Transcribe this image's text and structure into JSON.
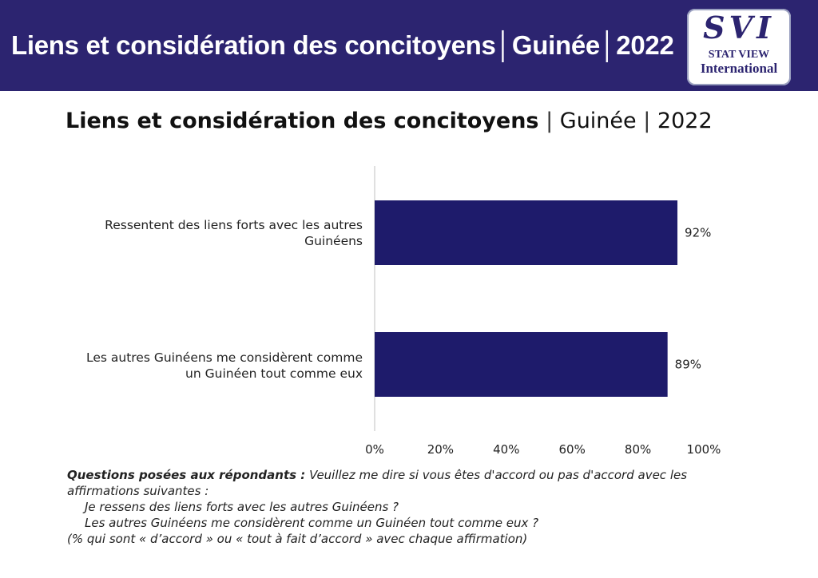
{
  "banner": {
    "title": "Liens et considération des concitoyens│Guinée│2022",
    "logo_mark": "SVI",
    "logo_line1": "STAT VIEW",
    "logo_line2": "International"
  },
  "chart_title": {
    "main": "Liens et considération des concitoyens",
    "separator": " | ",
    "country": "Guinée",
    "year": "2022"
  },
  "colors": {
    "banner": "#2c2470",
    "bar": "#1e1b6b",
    "axis": "#cccccc"
  },
  "chart_data": {
    "type": "bar",
    "orientation": "horizontal",
    "categories": [
      [
        "Ressentent des liens forts avec les autres",
        "Guinéens"
      ],
      [
        "Les autres Guinéens me considèrent comme",
        "un Guinéen tout comme eux"
      ]
    ],
    "values": [
      92,
      89
    ],
    "value_labels": [
      "92%",
      "89%"
    ],
    "xlim": [
      0,
      100
    ],
    "ticks": [
      "0%",
      "20%",
      "40%",
      "60%",
      "80%",
      "100%"
    ],
    "grid": false,
    "legend": "none"
  },
  "footer": {
    "lead": "Questions posées aux répondants :",
    "question": " Veuillez me dire si vous êtes d'accord ou pas d'accord avec les affirmations suivantes :",
    "item1": "Je ressens des liens forts avec les autres Guinéens ?",
    "item2": "Les autres Guinéens me considèrent comme un Guinéen tout comme eux ?",
    "note": "(% qui sont « d’accord » ou « tout à fait d’accord » avec chaque affirmation)"
  }
}
